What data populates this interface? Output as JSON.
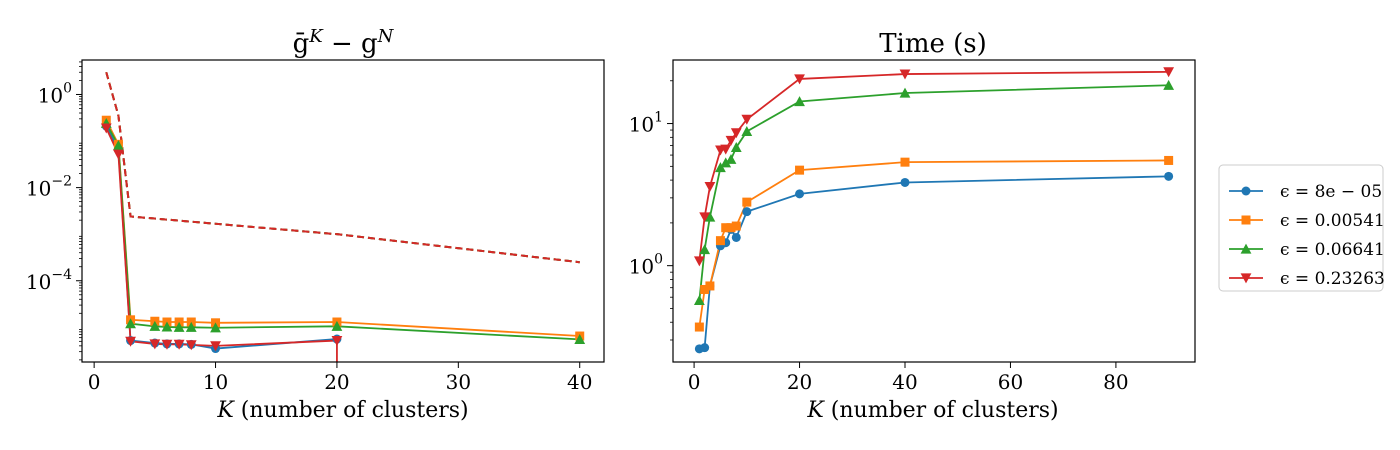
{
  "chart_data": [
    {
      "type": "line",
      "title": "ḡ^K − g^N",
      "title_main": "ḡ",
      "title_sup1": "K",
      "title_mid": " − g",
      "title_sup2": "N",
      "xlabel": "K (number of clusters)",
      "xlabel_var": "K",
      "xlabel_rest": " (number of clusters)",
      "ylabel": "",
      "yscale": "log",
      "xlim": [
        -1,
        42
      ],
      "ylim": [
        1.8e-06,
        5.5
      ],
      "xticks": [
        0,
        10,
        20,
        30,
        40
      ],
      "yticks": [
        {
          "value": 1,
          "base": "10",
          "exp": "0"
        },
        {
          "value": 0.01,
          "base": "10",
          "exp": "−2"
        },
        {
          "value": 0.0001,
          "base": "10",
          "exp": "−4"
        }
      ],
      "grid": false,
      "series": [
        {
          "name": "ϵ = 8e − 05",
          "color": "#1f77b4",
          "marker": "circle",
          "x": [
            1,
            2,
            3,
            5,
            6,
            7,
            8,
            10,
            20
          ],
          "y": [
            0.21,
            0.065,
            5.2e-06,
            4.6e-06,
            4.4e-06,
            4.4e-06,
            4.3e-06,
            3.5e-06,
            5.6e-06
          ]
        },
        {
          "name": "ϵ = 0.00541",
          "color": "#ff7f0e",
          "marker": "square",
          "x": [
            1,
            2,
            3,
            5,
            6,
            7,
            8,
            10,
            20,
            40
          ],
          "y": [
            0.28,
            0.085,
            1.45e-05,
            1.35e-05,
            1.3e-05,
            1.3e-05,
            1.3e-05,
            1.25e-05,
            1.3e-05,
            6.5e-06
          ]
        },
        {
          "name": "ϵ = 0.06641",
          "color": "#2ca02c",
          "marker": "triangle-up",
          "x": [
            1,
            2,
            3,
            5,
            6,
            7,
            8,
            10,
            20,
            40
          ],
          "y": [
            0.24,
            0.08,
            1.2e-05,
            1.05e-05,
            1.02e-05,
            1e-05,
            1e-05,
            9.8e-06,
            1.05e-05,
            5.5e-06
          ]
        },
        {
          "name": "ϵ = 0.23263",
          "color": "#d62728",
          "marker": "triangle-down",
          "x": [
            1,
            2,
            3,
            5,
            6,
            7,
            8,
            10,
            20
          ],
          "y": [
            0.19,
            0.052,
            5e-06,
            4.4e-06,
            4.3e-06,
            4.3e-06,
            4.2e-06,
            4e-06,
            5.2e-06
          ]
        }
      ],
      "dashed_lines": [
        {
          "color": "#1f77b4",
          "x": [
            1,
            2,
            3,
            20,
            40
          ],
          "y": [
            3.0,
            0.35,
            0.0024,
            0.001,
            0.00025
          ]
        },
        {
          "color": "#ff7f0e",
          "x": [
            1,
            2,
            3,
            20,
            40
          ],
          "y": [
            3.0,
            0.35,
            0.0024,
            0.001,
            0.00025
          ]
        },
        {
          "color": "#2ca02c",
          "x": [
            1,
            2,
            3,
            20,
            40
          ],
          "y": [
            3.0,
            0.35,
            0.0024,
            0.001,
            0.00025
          ]
        },
        {
          "color": "#d62728",
          "x": [
            1,
            2,
            3,
            20,
            40
          ],
          "y": [
            3.0,
            0.35,
            0.0024,
            0.001,
            0.00025
          ]
        }
      ],
      "drop_lines": [
        {
          "color": "#d62728",
          "x": 20,
          "y_from": 5.2e-06
        }
      ]
    },
    {
      "type": "line",
      "title": "Time (s)",
      "xlabel": "K (number of clusters)",
      "xlabel_var": "K",
      "xlabel_rest": " (number of clusters)",
      "ylabel": "",
      "yscale": "log",
      "xlim": [
        -4,
        95
      ],
      "ylim": [
        0.21,
        28
      ],
      "xticks": [
        0,
        20,
        40,
        60,
        80
      ],
      "yticks": [
        {
          "value": 1,
          "base": "10",
          "exp": "0"
        },
        {
          "value": 10,
          "base": "10",
          "exp": "1"
        }
      ],
      "grid": false,
      "series": [
        {
          "name": "ϵ = 8e − 05",
          "color": "#1f77b4",
          "marker": "circle",
          "x": [
            1,
            2,
            3,
            5,
            6,
            7,
            8,
            10,
            20,
            40,
            90
          ],
          "y": [
            0.26,
            0.265,
            0.72,
            1.38,
            1.45,
            1.8,
            1.58,
            2.4,
            3.2,
            3.85,
            4.25
          ]
        },
        {
          "name": "ϵ = 0.00541",
          "color": "#ff7f0e",
          "marker": "square",
          "x": [
            1,
            2,
            3,
            5,
            6,
            7,
            8,
            10,
            20,
            40,
            90
          ],
          "y": [
            0.37,
            0.68,
            0.72,
            1.5,
            1.85,
            1.85,
            1.9,
            2.8,
            4.7,
            5.35,
            5.5
          ]
        },
        {
          "name": "ϵ = 0.06641",
          "color": "#2ca02c",
          "marker": "triangle-up",
          "x": [
            1,
            2,
            3,
            5,
            6,
            7,
            8,
            10,
            20,
            40,
            90
          ],
          "y": [
            0.57,
            1.3,
            2.2,
            4.9,
            5.3,
            5.6,
            6.8,
            8.8,
            14.3,
            16.4,
            18.6
          ]
        },
        {
          "name": "ϵ = 0.23263",
          "color": "#d62728",
          "marker": "triangle-down",
          "x": [
            1,
            2,
            3,
            5,
            6,
            7,
            8,
            10,
            20,
            40,
            90
          ],
          "y": [
            1.08,
            2.2,
            3.6,
            6.5,
            6.6,
            7.6,
            8.6,
            10.7,
            20.6,
            22.3,
            23.1
          ]
        }
      ]
    }
  ],
  "legend": {
    "placement": "outside-right",
    "entries": [
      {
        "label": "ϵ = 8e − 05",
        "color": "#1f77b4",
        "marker": "circle"
      },
      {
        "label": "ϵ = 0.00541",
        "color": "#ff7f0e",
        "marker": "square"
      },
      {
        "label": "ϵ = 0.06641",
        "color": "#2ca02c",
        "marker": "triangle-up"
      },
      {
        "label": "ϵ = 0.23263",
        "color": "#d62728",
        "marker": "triangle-down"
      }
    ]
  }
}
